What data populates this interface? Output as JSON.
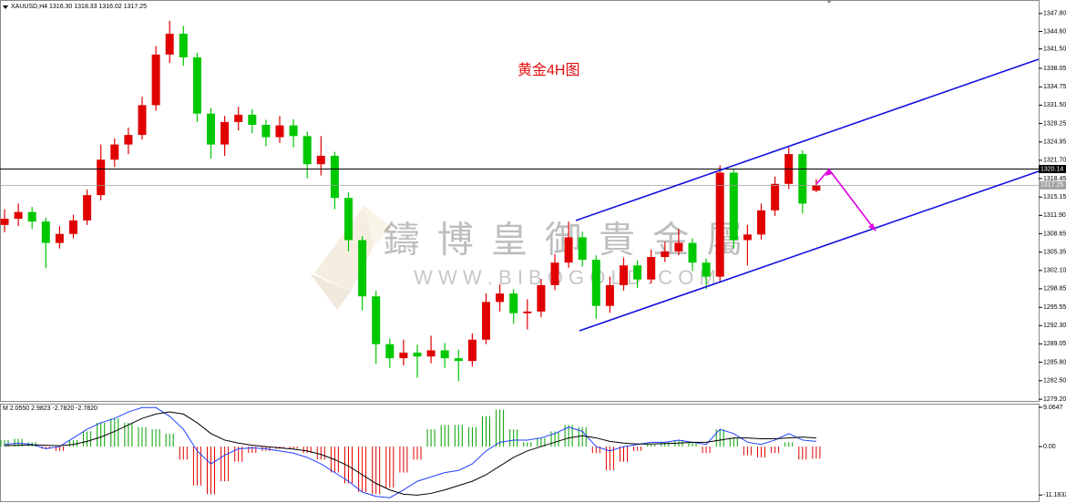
{
  "chart_data": [
    {
      "type": "candlestick",
      "title": "XAUUSD,H4  1316.30 1318.33 1316.02 1317.25",
      "annotation": "黄金4H图",
      "watermark": [
        "鑄 博 皇 御 貴 金 屬",
        "W W W . B I B O G O L D . C O M"
      ],
      "up_color": "#e00000",
      "down_color": "#00c800",
      "open": [
        1310.2,
        1311.3,
        1312.5,
        1310.8,
        1307.0,
        1308.6,
        1311.0,
        1315.5,
        1321.8,
        1324.5,
        1326.2,
        1331.5,
        1340.5,
        1344.2,
        1340.0,
        1330.0,
        1324.5,
        1328.5,
        1329.8,
        1328.0,
        1325.8,
        1327.9,
        1326.0,
        1321.0,
        1322.5,
        1315.0,
        1307.5,
        1297.5,
        1289.0,
        1286.5,
        1287.5,
        1286.8,
        1287.9,
        1286.5,
        1286.0,
        1289.8,
        1296.5,
        1298.0,
        1294.5,
        1294.8,
        1299.5,
        1303.5,
        1308.0,
        1304.0,
        1295.8,
        1299.5,
        1303.0,
        1300.5,
        1304.5,
        1305.5,
        1307.0,
        1303.5,
        1301.0,
        1319.5,
        1307.5,
        1308.5,
        1312.8,
        1317.5,
        1322.8,
        1316.3
      ],
      "high": [
        1313.0,
        1314.0,
        1313.4,
        1311.5,
        1310.0,
        1312.0,
        1316.5,
        1324.5,
        1325.6,
        1327.5,
        1333.0,
        1342.0,
        1346.5,
        1345.6,
        1340.8,
        1331.0,
        1329.6,
        1331.2,
        1330.8,
        1328.9,
        1329.6,
        1329.0,
        1326.8,
        1326.0,
        1323.2,
        1316.0,
        1308.2,
        1298.5,
        1290.0,
        1289.8,
        1288.9,
        1290.5,
        1289.2,
        1288.0,
        1290.9,
        1298.0,
        1299.6,
        1298.8,
        1297.0,
        1300.6,
        1305.0,
        1310.8,
        1309.0,
        1304.8,
        1301.0,
        1304.4,
        1303.9,
        1305.8,
        1307.2,
        1309.5,
        1307.8,
        1304.2,
        1320.8,
        1320.2,
        1310.2,
        1314.0,
        1318.8,
        1324.0,
        1323.5,
        1318.33
      ],
      "low": [
        1308.9,
        1310.0,
        1309.5,
        1302.5,
        1306.0,
        1307.8,
        1310.2,
        1314.6,
        1320.5,
        1322.8,
        1325.4,
        1330.5,
        1339.0,
        1338.5,
        1328.5,
        1322.0,
        1322.5,
        1327.0,
        1326.5,
        1324.2,
        1324.8,
        1324.0,
        1318.5,
        1319.0,
        1313.0,
        1305.5,
        1295.0,
        1285.5,
        1284.8,
        1285.2,
        1283.0,
        1285.6,
        1284.8,
        1282.4,
        1285.0,
        1289.0,
        1294.8,
        1292.6,
        1291.6,
        1293.8,
        1298.6,
        1302.6,
        1302.8,
        1293.5,
        1294.6,
        1298.5,
        1299.0,
        1299.8,
        1303.6,
        1304.8,
        1302.0,
        1298.8,
        1300.2,
        1306.0,
        1303.0,
        1307.6,
        1311.8,
        1316.6,
        1312.2,
        1316.02
      ],
      "close": [
        1311.3,
        1312.5,
        1310.8,
        1307.0,
        1308.6,
        1311.0,
        1315.5,
        1321.8,
        1324.5,
        1326.2,
        1331.5,
        1340.5,
        1344.2,
        1340.0,
        1330.0,
        1324.5,
        1328.5,
        1329.8,
        1328.0,
        1325.8,
        1327.9,
        1326.0,
        1321.0,
        1322.5,
        1315.0,
        1307.5,
        1297.5,
        1289.0,
        1286.5,
        1287.5,
        1286.8,
        1287.9,
        1286.5,
        1286.0,
        1289.8,
        1296.5,
        1298.0,
        1294.5,
        1294.8,
        1299.5,
        1303.5,
        1308.0,
        1304.0,
        1295.8,
        1299.5,
        1303.0,
        1300.5,
        1304.5,
        1305.5,
        1307.0,
        1303.5,
        1301.0,
        1319.5,
        1307.5,
        1308.5,
        1312.8,
        1317.5,
        1322.8,
        1314.0,
        1317.25
      ],
      "ylim": [
        1278.9,
        1350.2
      ],
      "yticks": [
        {
          "value": 1347.8,
          "label": "1347.80"
        },
        {
          "value": 1344.6,
          "label": "1344.60"
        },
        {
          "value": 1341.5,
          "label": "1341.50"
        },
        1338.05,
        1334.75,
        {
          "value": 1331.5,
          "label": "1331.50"
        },
        1328.25,
        1324.95,
        {
          "value": 1321.7,
          "label": "1321.70"
        },
        1318.45,
        1315.15,
        {
          "value": 1311.9,
          "label": "1311.90"
        },
        1308.65,
        1305.35,
        {
          "value": 1302.1,
          "label": "1302.10"
        },
        1298.85,
        1295.55,
        {
          "value": 1292.3,
          "label": "1292.30"
        },
        1289.05,
        {
          "value": 1285.8,
          "label": "1285.80"
        },
        {
          "value": 1282.5,
          "label": "1282.50"
        },
        {
          "value": 1279.2,
          "label": "1279.20"
        }
      ],
      "price_lines": [
        {
          "value": 1320.14,
          "color": "#000000"
        },
        {
          "value": 1317.25,
          "color": "#a0a0a0"
        }
      ]
    },
    {
      "type": "macd",
      "title": "M 2.0550 2.9823 -2.7820 -2.7820",
      "up_color": "#00a000",
      "down_color": "#e00000",
      "histogram": [
        1.5,
        1.8,
        1.0,
        -0.5,
        -1.0,
        1.5,
        3.5,
        5.5,
        6.5,
        5.5,
        4.5,
        4.0,
        3.0,
        -3.0,
        -9.0,
        -11.0,
        -8.0,
        -3.5,
        -1.5,
        -1.0,
        -0.5,
        -0.5,
        -1.5,
        -3.0,
        -6.0,
        -8.5,
        -10.5,
        -11.0,
        -9.5,
        -6.0,
        -3.0,
        4.0,
        5.0,
        5.0,
        4.5,
        7.0,
        8.5,
        4.0,
        1.0,
        2.0,
        3.5,
        5.0,
        4.5,
        -1.5,
        -5.5,
        -3.5,
        -1.0,
        0.5,
        1.0,
        1.5,
        1.0,
        -1.5,
        4.0,
        2.0,
        -2.0,
        -2.5,
        -1.5,
        1.0,
        -3.0,
        -2.782
      ],
      "series": [
        {
          "color": "#1f3fff",
          "values": [
            0.5,
            0.8,
            0.5,
            -0.5,
            0,
            2,
            4,
            5.5,
            6.5,
            8,
            9,
            9,
            7,
            4,
            -1,
            -4,
            -2,
            -0.5,
            -0.3,
            -0.5,
            -1,
            -1.5,
            -2.5,
            -4,
            -6,
            -8,
            -10.5,
            -11.5,
            -11.8,
            -10,
            -8,
            -7,
            -6,
            -5.5,
            -4,
            -1,
            1,
            1.5,
            1.5,
            2,
            3,
            4.5,
            3.5,
            0,
            -1,
            0,
            0.5,
            1,
            1,
            1.5,
            1,
            0.5,
            4,
            3,
            1,
            0.5,
            1.5,
            3,
            1.5,
            1.2
          ]
        },
        {
          "color": "#000000",
          "values": [
            0.2,
            0.3,
            0.4,
            0.3,
            0.2,
            0.5,
            1.2,
            2.2,
            3.5,
            5,
            6.5,
            7.5,
            8,
            7.5,
            5.5,
            3,
            1.5,
            0.8,
            0.3,
            0,
            -0.3,
            -0.6,
            -1,
            -1.8,
            -3,
            -4.5,
            -6.5,
            -8.5,
            -10,
            -11,
            -11.2,
            -10.8,
            -10,
            -9,
            -8,
            -6.5,
            -4.5,
            -2.5,
            -1,
            0,
            1,
            2,
            2.5,
            2,
            1.2,
            0.8,
            0.6,
            0.6,
            0.7,
            0.8,
            1,
            1,
            1.5,
            2,
            2,
            1.8,
            1.8,
            2,
            2.2,
            2.0
          ]
        }
      ],
      "ylim": [
        -12.6,
        9.9
      ],
      "yticks": [
        9.0647,
        {
          "value": 0,
          "label": "0.00"
        },
        -11.1832
      ]
    }
  ]
}
